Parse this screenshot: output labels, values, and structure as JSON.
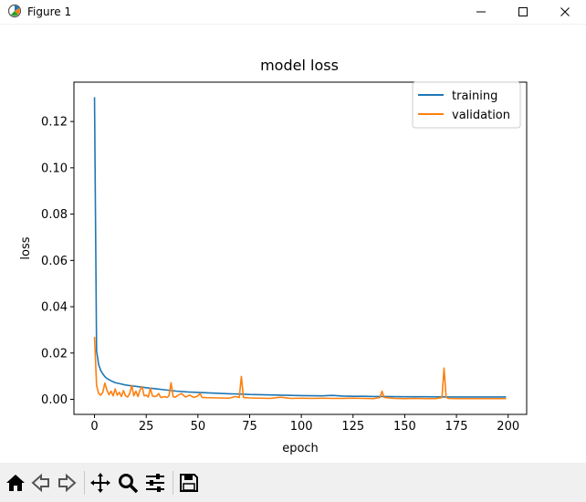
{
  "window": {
    "title": "Figure 1",
    "icon": "matplotlib-figure-icon",
    "controls": [
      "minimize-icon",
      "maximize-icon",
      "close-icon"
    ]
  },
  "toolbar": {
    "buttons": [
      {
        "name": "home-button",
        "icon": "home-icon"
      },
      {
        "name": "back-button",
        "icon": "back-arrow-icon"
      },
      {
        "name": "forward-button",
        "icon": "forward-arrow-icon"
      },
      {
        "name": "pan-button",
        "icon": "move-icon"
      },
      {
        "name": "zoom-button",
        "icon": "zoom-icon"
      },
      {
        "name": "configure-subplots-button",
        "icon": "sliders-icon"
      },
      {
        "name": "save-button",
        "icon": "save-icon"
      }
    ]
  },
  "chart_data": {
    "type": "line",
    "title": "model loss",
    "xlabel": "epoch",
    "ylabel": "loss",
    "xlim": [
      -9.95,
      208.95
    ],
    "ylim": [
      -0.0065,
      0.137
    ],
    "xticks": [
      0,
      25,
      50,
      75,
      100,
      125,
      150,
      175,
      200
    ],
    "yticks": [
      0.0,
      0.02,
      0.04,
      0.06,
      0.08,
      0.1,
      0.12
    ],
    "ytick_labels": [
      "0.00",
      "0.02",
      "0.04",
      "0.06",
      "0.08",
      "0.10",
      "0.12"
    ],
    "legend": {
      "position": "upper right",
      "entries": [
        "training",
        "validation"
      ]
    },
    "series": [
      {
        "name": "training",
        "color": "#1f77b4",
        "x": [
          0,
          1,
          2,
          3,
          4,
          5,
          6,
          8,
          10,
          12,
          15,
          18,
          20,
          25,
          30,
          35,
          40,
          45,
          50,
          55,
          60,
          65,
          70,
          75,
          80,
          85,
          90,
          95,
          100,
          110,
          115,
          120,
          125,
          130,
          135,
          140,
          150,
          160,
          170,
          180,
          190,
          199
        ],
        "y": [
          0.1305,
          0.021,
          0.015,
          0.0125,
          0.011,
          0.0098,
          0.009,
          0.008,
          0.0072,
          0.0068,
          0.0062,
          0.0058,
          0.0056,
          0.005,
          0.0045,
          0.004,
          0.0035,
          0.0032,
          0.003,
          0.0028,
          0.0026,
          0.0024,
          0.0023,
          0.0021,
          0.002,
          0.0019,
          0.0018,
          0.0017,
          0.0016,
          0.0015,
          0.0017,
          0.0014,
          0.0013,
          0.0013,
          0.0012,
          0.0012,
          0.0011,
          0.0011,
          0.001,
          0.001,
          0.001,
          0.001
        ]
      },
      {
        "name": "validation",
        "color": "#ff7f0e",
        "x": [
          0,
          1,
          2,
          3,
          4,
          5,
          6,
          7,
          8,
          9,
          10,
          11,
          12,
          13,
          14,
          15,
          16,
          17,
          18,
          19,
          20,
          21,
          22,
          23,
          24,
          25,
          26,
          27,
          28,
          29,
          30,
          31,
          32,
          33,
          34,
          35,
          36,
          37,
          38,
          39,
          40,
          42,
          44,
          46,
          48,
          50,
          51,
          52,
          55,
          60,
          65,
          68,
          70,
          71,
          72,
          75,
          80,
          85,
          90,
          95,
          100,
          105,
          110,
          115,
          120,
          125,
          130,
          135,
          138,
          139,
          140,
          145,
          150,
          155,
          160,
          165,
          168,
          169,
          170,
          171,
          175,
          180,
          190,
          199
        ],
        "y": [
          0.027,
          0.006,
          0.0025,
          0.0018,
          0.003,
          0.007,
          0.004,
          0.002,
          0.0035,
          0.0015,
          0.0045,
          0.0018,
          0.003,
          0.0012,
          0.0038,
          0.0015,
          0.001,
          0.0025,
          0.006,
          0.0015,
          0.0035,
          0.0012,
          0.004,
          0.0055,
          0.0015,
          0.0018,
          0.001,
          0.0048,
          0.0015,
          0.0012,
          0.0014,
          0.0025,
          0.0008,
          0.001,
          0.0012,
          0.0008,
          0.0015,
          0.0072,
          0.0012,
          0.0009,
          0.0015,
          0.0025,
          0.001,
          0.0018,
          0.0008,
          0.0015,
          0.0025,
          0.0008,
          0.0007,
          0.0006,
          0.0005,
          0.0012,
          0.0008,
          0.0099,
          0.0008,
          0.0006,
          0.0005,
          0.0004,
          0.0009,
          0.0004,
          0.0005,
          0.0004,
          0.0005,
          0.0004,
          0.0004,
          0.0005,
          0.0004,
          0.0003,
          0.0008,
          0.0035,
          0.0008,
          0.0004,
          0.0003,
          0.0004,
          0.0003,
          0.0003,
          0.0008,
          0.0135,
          0.001,
          0.0004,
          0.0003,
          0.0003,
          0.0003,
          0.0003
        ]
      }
    ]
  }
}
